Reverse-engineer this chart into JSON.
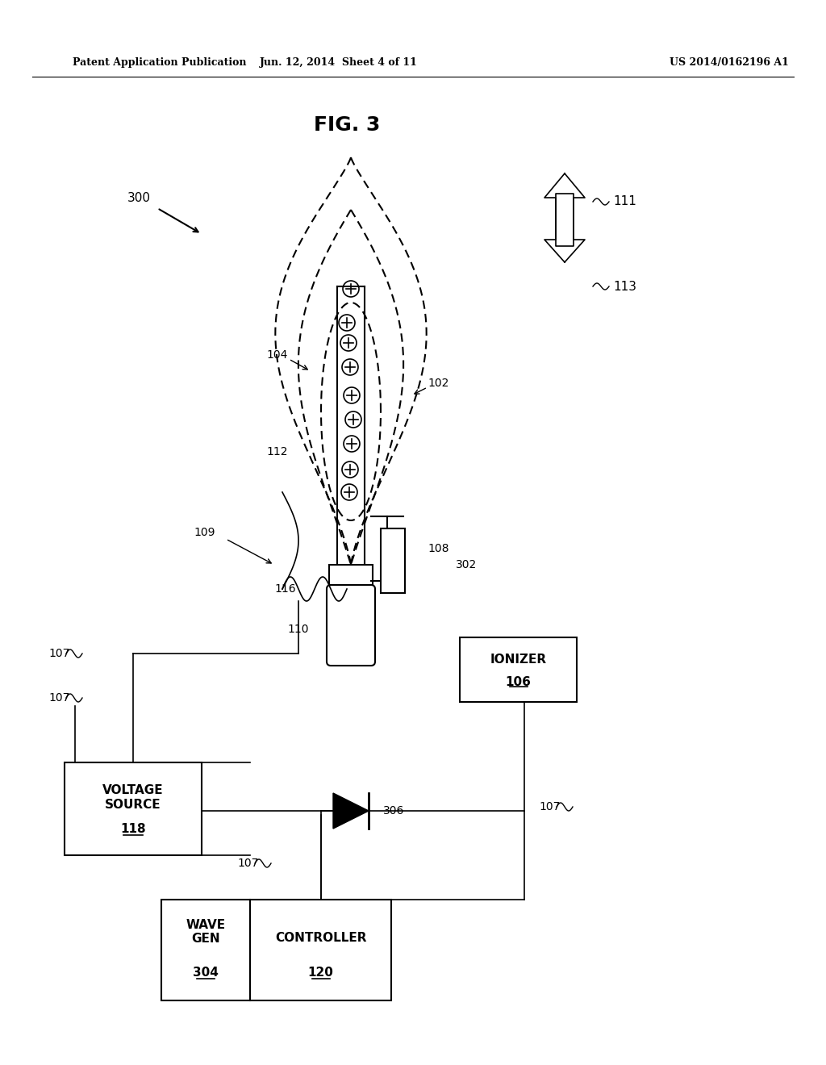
{
  "title": "FIG. 3",
  "header_left": "Patent Application Publication",
  "header_center": "Jun. 12, 2014  Sheet 4 of 11",
  "header_right": "US 2014/0162196 A1",
  "bg_color": "#ffffff",
  "text_color": "#000000",
  "label_300": "300",
  "label_111": "111",
  "label_113": "113",
  "label_104": "104",
  "label_102": "102",
  "label_112": "112",
  "label_109": "109",
  "label_108": "108",
  "label_302": "302",
  "label_116": "116",
  "label_110": "110",
  "label_107": "107",
  "label_106": "106",
  "label_118": "118",
  "label_306": "306",
  "label_304": "304",
  "label_120": "120",
  "box_voltage": "VOLTAGE\nSOURCE\n",
  "box_voltage_num": "118",
  "box_ionizer": "IONIZER\n",
  "box_ionizer_num": "106",
  "box_wavegen": "WAVE\nGEN\n",
  "box_wavegen_num": "304",
  "box_controller": "CONTROLLER\n",
  "box_controller_num": "120"
}
